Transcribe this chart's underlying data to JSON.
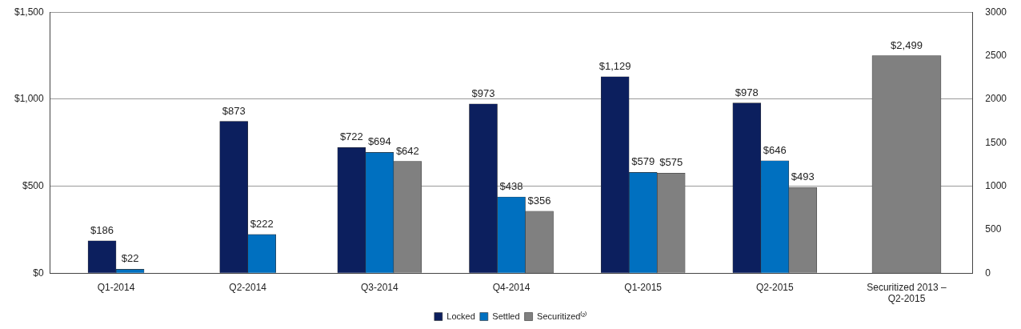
{
  "chart_data": {
    "type": "bar",
    "categories": [
      "Q1-2014",
      "Q2-2014",
      "Q3-2014",
      "Q4-2014",
      "Q1-2015",
      "Q2-2015",
      "Securitized 2013 – Q2-2015"
    ],
    "series": [
      {
        "name": "Locked",
        "color": "#0c1f5e",
        "values": [
          186,
          873,
          722,
          973,
          1129,
          978,
          null
        ],
        "value_labels": [
          "$186",
          "$873",
          "$722",
          "$973",
          "$1,129",
          "$978",
          null
        ]
      },
      {
        "name": "Settled",
        "color": "#0070c0",
        "values": [
          22,
          222,
          694,
          438,
          579,
          646,
          null
        ],
        "value_labels": [
          "$22",
          "$222",
          "$694",
          "$438",
          "$579",
          "$646",
          null
        ]
      },
      {
        "name": "Securitized⁽²⁾",
        "color": "#808080",
        "values": [
          null,
          null,
          642,
          356,
          575,
          493,
          null
        ],
        "value_labels": [
          null,
          null,
          "$642",
          "$356",
          "$575",
          "$493",
          null
        ]
      },
      {
        "color": "#808080",
        "axis": "y2",
        "values": [
          null,
          null,
          null,
          null,
          null,
          null,
          2499
        ],
        "value_labels": [
          null,
          null,
          null,
          null,
          null,
          null,
          "$2,499"
        ]
      }
    ],
    "ylim": [
      0,
      1500
    ],
    "yticks": [
      {
        "value": 0,
        "label": "$0"
      },
      {
        "value": 500,
        "label": "$500"
      },
      {
        "value": 1000,
        "label": "$1,000"
      },
      {
        "value": 1500,
        "label": "$1,500"
      }
    ],
    "y2lim": [
      0,
      3000
    ],
    "y2ticks": [
      0,
      500,
      1000,
      1500,
      2000,
      2500,
      3000
    ],
    "grid": "y",
    "legend": "bottom"
  }
}
